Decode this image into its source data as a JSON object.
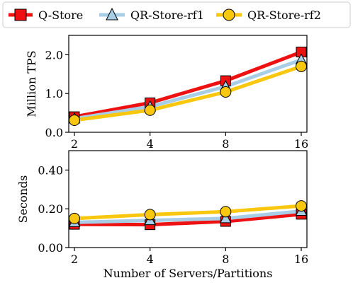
{
  "legend": {
    "series": [
      "Q-Store",
      "QR-Store-rf1",
      "QR-Store-rf2"
    ]
  },
  "chart_data": [
    {
      "type": "line",
      "x": [
        2,
        4,
        8,
        16
      ],
      "x_scale": "log2",
      "xtick_labels": [
        "2",
        "4",
        "8",
        "16"
      ],
      "ylabel": "Million TPS",
      "xlabel": "",
      "ylim": [
        0,
        2.5
      ],
      "yticks": [
        0.0,
        1.0,
        2.0
      ],
      "ytick_labels": [
        "0.0",
        "1.0",
        "2.0"
      ],
      "series": [
        {
          "name": "Q-Store",
          "color": "#ee1111",
          "marker": "square",
          "values": [
            0.4,
            0.76,
            1.33,
            2.07
          ]
        },
        {
          "name": "QR-Store-rf1",
          "color": "#a8cde6",
          "marker": "triangle",
          "values": [
            0.35,
            0.66,
            1.18,
            1.87
          ]
        },
        {
          "name": "QR-Store-rf2",
          "color": "#f9c80e",
          "marker": "circle",
          "values": [
            0.31,
            0.57,
            1.04,
            1.7
          ]
        }
      ]
    },
    {
      "type": "line",
      "x": [
        2,
        4,
        8,
        16
      ],
      "x_scale": "log2",
      "xtick_labels": [
        "2",
        "4",
        "8",
        "16"
      ],
      "ylabel": "Seconds",
      "xlabel": "Number of Servers/Partitions",
      "ylim": [
        0,
        0.5
      ],
      "yticks": [
        0.0,
        0.2,
        0.4
      ],
      "ytick_labels": [
        "0.00",
        "0.20",
        "0.40"
      ],
      "series": [
        {
          "name": "Q-Store",
          "color": "#ee1111",
          "marker": "square",
          "values": [
            0.12,
            0.118,
            0.135,
            0.172
          ]
        },
        {
          "name": "QR-Store-rf1",
          "color": "#a8cde6",
          "marker": "triangle",
          "values": [
            0.13,
            0.14,
            0.15,
            0.188
          ]
        },
        {
          "name": "QR-Store-rf2",
          "color": "#f9c80e",
          "marker": "circle",
          "values": [
            0.15,
            0.17,
            0.185,
            0.215
          ]
        }
      ]
    }
  ]
}
